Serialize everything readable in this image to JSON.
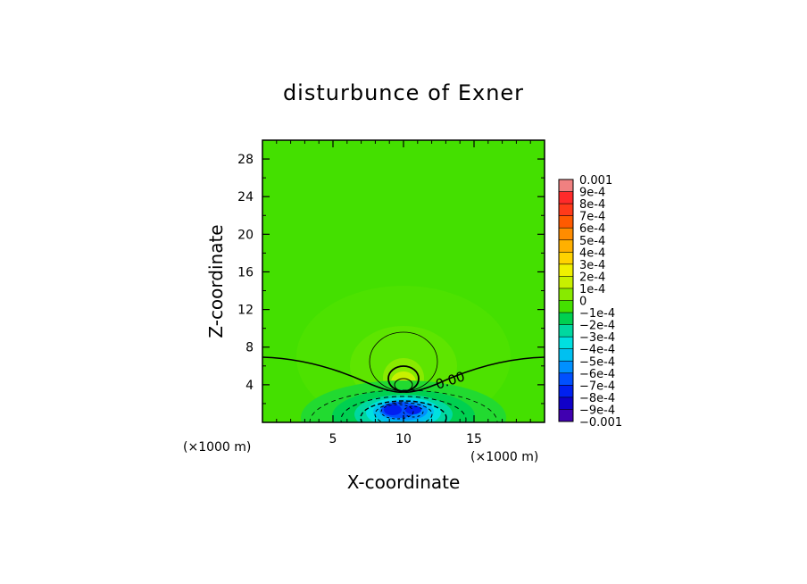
{
  "chart_data": {
    "type": "heatmap",
    "title": "disturbunce of Exner",
    "xlabel": "X-coordinate",
    "ylabel": "Z-coordinate",
    "x_unit_left": "(×1000 m)",
    "x_unit_right": "(×1000 m)",
    "y_unit": "(×1000 m)",
    "xlim": [
      0,
      20
    ],
    "ylim": [
      0,
      30
    ],
    "x_ticks": [
      5,
      10,
      15
    ],
    "y_ticks": [
      4,
      8,
      12,
      16,
      20,
      24,
      28
    ],
    "contour_label": "0.00",
    "colorbar": {
      "labels": [
        "0.001",
        "9e-4",
        "8e-4",
        "7e-4",
        "6e-4",
        "5e-4",
        "4e-4",
        "3e-4",
        "2e-4",
        "1e-4",
        "0",
        "−1e-4",
        "−2e-4",
        "−3e-4",
        "−4e-4",
        "−5e-4",
        "−6e-4",
        "−7e-4",
        "−8e-4",
        "−9e-4",
        "−0.001"
      ],
      "colors": [
        "#f08080",
        "#ff2a2a",
        "#ff3a1a",
        "#ff5a00",
        "#ff8c00",
        "#ffb000",
        "#ffd200",
        "#f0f000",
        "#c8f000",
        "#88ea00",
        "#44e000",
        "#00d050",
        "#00d8a0",
        "#00e0e0",
        "#00c0f0",
        "#0090ff",
        "#0050ff",
        "#0020f0",
        "#1000c8",
        "#4000b0"
      ]
    },
    "field": {
      "background": "#44e000",
      "positive_center": [
        10,
        4
      ],
      "negative_center": [
        10,
        1.2
      ],
      "max": 0.0003,
      "min": -0.001
    }
  }
}
